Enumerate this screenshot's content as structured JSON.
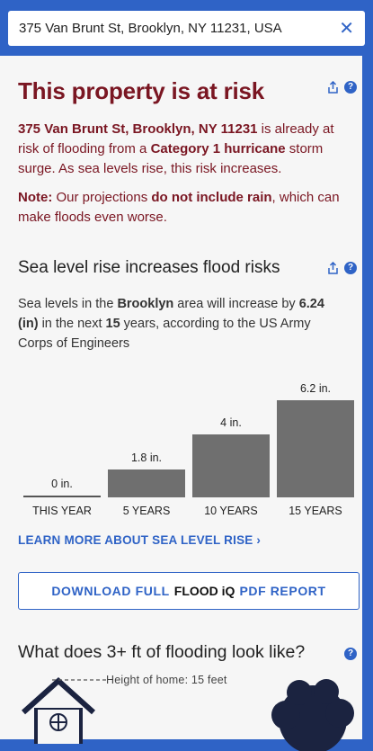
{
  "search": {
    "value": "375 Van Brunt St, Brooklyn, NY 11231, USA"
  },
  "risk": {
    "title": "This property is at risk",
    "address_bold": "375 Van Brunt St, Brooklyn, NY 11231",
    "text_1": " is already at risk of flooding from a ",
    "category_bold": "Category  1 hurricane",
    "text_2": " storm surge. As sea levels rise, this risk increases.",
    "note_label": "Note:",
    "note_text_1": " Our projections ",
    "note_bold": "do not include rain",
    "note_text_2": ", which can make floods even worse."
  },
  "sea_level": {
    "title": "Sea level rise increases flood risks",
    "text_1": "Sea levels in the ",
    "area_bold": "Brooklyn",
    "text_2": " area will increase by ",
    "amount_bold": "6.24 (in)",
    "text_3": " in the next ",
    "years_bold": "15",
    "text_4": " years, according to the US Army Corps of Engineers"
  },
  "chart_data": {
    "type": "bar",
    "categories": [
      "THIS YEAR",
      "5 YEARS",
      "10 YEARS",
      "15 YEARS"
    ],
    "values": [
      0,
      1.8,
      4,
      6.2
    ],
    "value_labels": [
      "0 in.",
      "1.8 in.",
      "4 in.",
      "6.2 in."
    ],
    "ylim": [
      0,
      6.2
    ],
    "bar_color": "#6f6f6f"
  },
  "links": {
    "learn_more": "LEARN MORE ABOUT SEA LEVEL RISE ›"
  },
  "download": {
    "prefix": "DOWNLOAD FULL",
    "brand": "FLOOD iQ",
    "suffix": "PDF REPORT"
  },
  "flooding": {
    "title": "What does 3+ ft of flooding look like?",
    "height_label": "Height of home: 15 feet"
  },
  "colors": {
    "accent": "#2f63c6",
    "risk_red": "#7a1622",
    "panel": "#f6f6f6"
  },
  "icons": [
    "close-icon",
    "share-icon",
    "help-icon",
    "house-icon",
    "tree-icon"
  ]
}
